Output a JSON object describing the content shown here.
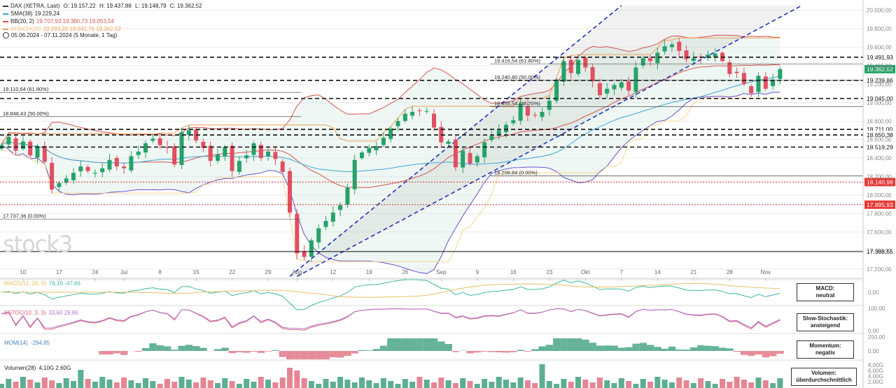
{
  "header": {
    "title": "DAX (XETRA, Last)",
    "ohlc": {
      "o": "O: 19.157,22",
      "h": "H: 19.437,88",
      "l": "L: 19.148,79",
      "c": "C: 19.362,52"
    },
    "period": "05.06.2024 - 07.11.2024  (5 Monate, 1 Tag)",
    "legend": [
      {
        "label": "SMA(38)",
        "value": "19.229,24",
        "color": "#3fa7d6"
      },
      {
        "label": "BB(20, 2)",
        "value": "19.707,93  19.380,73  19.053,54",
        "color": "#d9534f"
      },
      {
        "label": "DONCH(20)",
        "value": "19.293,20  18.941,76  19.362,52",
        "color": "#f0a050"
      }
    ]
  },
  "watermark": "stock3",
  "chart_data": {
    "type": "candlestick",
    "title": "DAX (XETRA, Last)",
    "ylim": [
      17100,
      20050
    ],
    "y_ticks": [
      "20.000,00",
      "19.800,00",
      "19.600,00",
      "19.400,00",
      "19.200,00",
      "19.000,00",
      "18.800,00",
      "18.600,00",
      "18.400,00",
      "18.200,00",
      "18.000,00",
      "17.800,00",
      "17.600,00",
      "17.400,00",
      "17.200,00"
    ],
    "y_tick_values": [
      20000,
      19800,
      19600,
      19400,
      19200,
      19000,
      18800,
      18600,
      18400,
      18200,
      18000,
      17800,
      17600,
      17400,
      17200
    ],
    "x_ticks": [
      "10",
      "17",
      "24",
      "Jul",
      "8",
      "15",
      "22",
      "29",
      "Aug",
      "12",
      "19",
      "26",
      "Sep",
      "9",
      "16",
      "23",
      "Okt",
      "7",
      "14",
      "21",
      "28",
      "Nov"
    ],
    "x_tick_index": [
      3,
      8,
      13,
      17,
      22,
      27,
      32,
      37,
      41,
      46,
      51,
      56,
      61,
      66,
      71,
      76,
      81,
      86,
      91,
      96,
      101,
      106
    ],
    "closes": [
      18540,
      18630,
      18480,
      18580,
      18430,
      18520,
      18360,
      18060,
      18130,
      18180,
      18240,
      18310,
      18260,
      18240,
      18290,
      18380,
      18310,
      18290,
      18420,
      18470,
      18560,
      18610,
      18540,
      18510,
      18330,
      18680,
      18700,
      18590,
      18510,
      18370,
      18440,
      18520,
      18260,
      18370,
      18430,
      18560,
      18400,
      18470,
      18390,
      18250,
      17810,
      17370,
      17330,
      17510,
      17640,
      17720,
      17810,
      17890,
      18080,
      18380,
      18460,
      18510,
      18530,
      18620,
      18720,
      18800,
      18880,
      18900,
      18910,
      18910,
      18730,
      18570,
      18580,
      18300,
      18480,
      18340,
      18420,
      18570,
      18640,
      18700,
      18760,
      18810,
      18990,
      18860,
      18860,
      18900,
      19020,
      19250,
      19450,
      19320,
      19460,
      19380,
      19230,
      19080,
      19150,
      19190,
      19220,
      19130,
      19380,
      19480,
      19450,
      19540,
      19610,
      19630,
      19560,
      19470,
      19480,
      19490,
      19520,
      19530,
      19450,
      19310,
      19320,
      19200,
      19100,
      19290,
      19150,
      19250,
      19362.52
    ],
    "annotations": {
      "horizontal_levels": [
        "19.491,93",
        "19.239,86",
        "19.045,00",
        "18.711,00",
        "18.650,38",
        "18.519,29",
        "17.388,55"
      ],
      "horizontal_level_values": [
        19491.93,
        19239.86,
        19045,
        18711,
        18650.38,
        18519.29,
        17388.55
      ],
      "red_levels": [
        "18.140,99",
        "17.895,93"
      ],
      "red_level_values": [
        18140.99,
        17895.93
      ],
      "last_price": "19.362,52",
      "last_price_value": 19362.52,
      "fib_left": [
        {
          "label": "19.110,64 (61.80%)",
          "value": 19110.64
        },
        {
          "label": "18.848,43 (50.00%)",
          "value": 18848.43
        },
        {
          "label": "17.737,36 (0.00%)",
          "value": 17737.36
        }
      ],
      "fib_right": [
        {
          "label": "19.416,54 (61.80%)",
          "value": 19416.54
        },
        {
          "label": "19.240,80 (50.00%)",
          "value": 19240.8
        },
        {
          "label": "18.955,54 (38.20%)",
          "value": 18955.54
        },
        {
          "label": "18.208,84 (0.00%)",
          "value": 18208.84
        }
      ]
    }
  },
  "indicators": {
    "macd": {
      "label": "MACD(12, 26, 9)",
      "values": "76,16  -47,66",
      "zero": "0,00",
      "status_label": "MACD:",
      "status": "neutral"
    },
    "stoch": {
      "label": "SSTOC(10, 3, 3)",
      "values": "33,60  29,86",
      "top": "100,00",
      "zero": "0,00",
      "status_label": "Slow-Stochastik:",
      "status": "ansteigend"
    },
    "mom": {
      "label": "MOM(14)",
      "values": "-294,85",
      "top": "250,00",
      "zero": "0,00",
      "status_label": "Momentum:",
      "status": "negativ"
    },
    "volume": {
      "label": "Volumen(28)",
      "values": "4,10G  2,60G",
      "ticks": [
        "8,00G",
        "6,00G",
        "4,00G",
        "2,00G"
      ],
      "status_label": "Volumen:",
      "status": "überdurchschnittlich"
    }
  },
  "colors": {
    "up": "#26a269",
    "down": "#e05060",
    "grid": "#dddddd"
  }
}
